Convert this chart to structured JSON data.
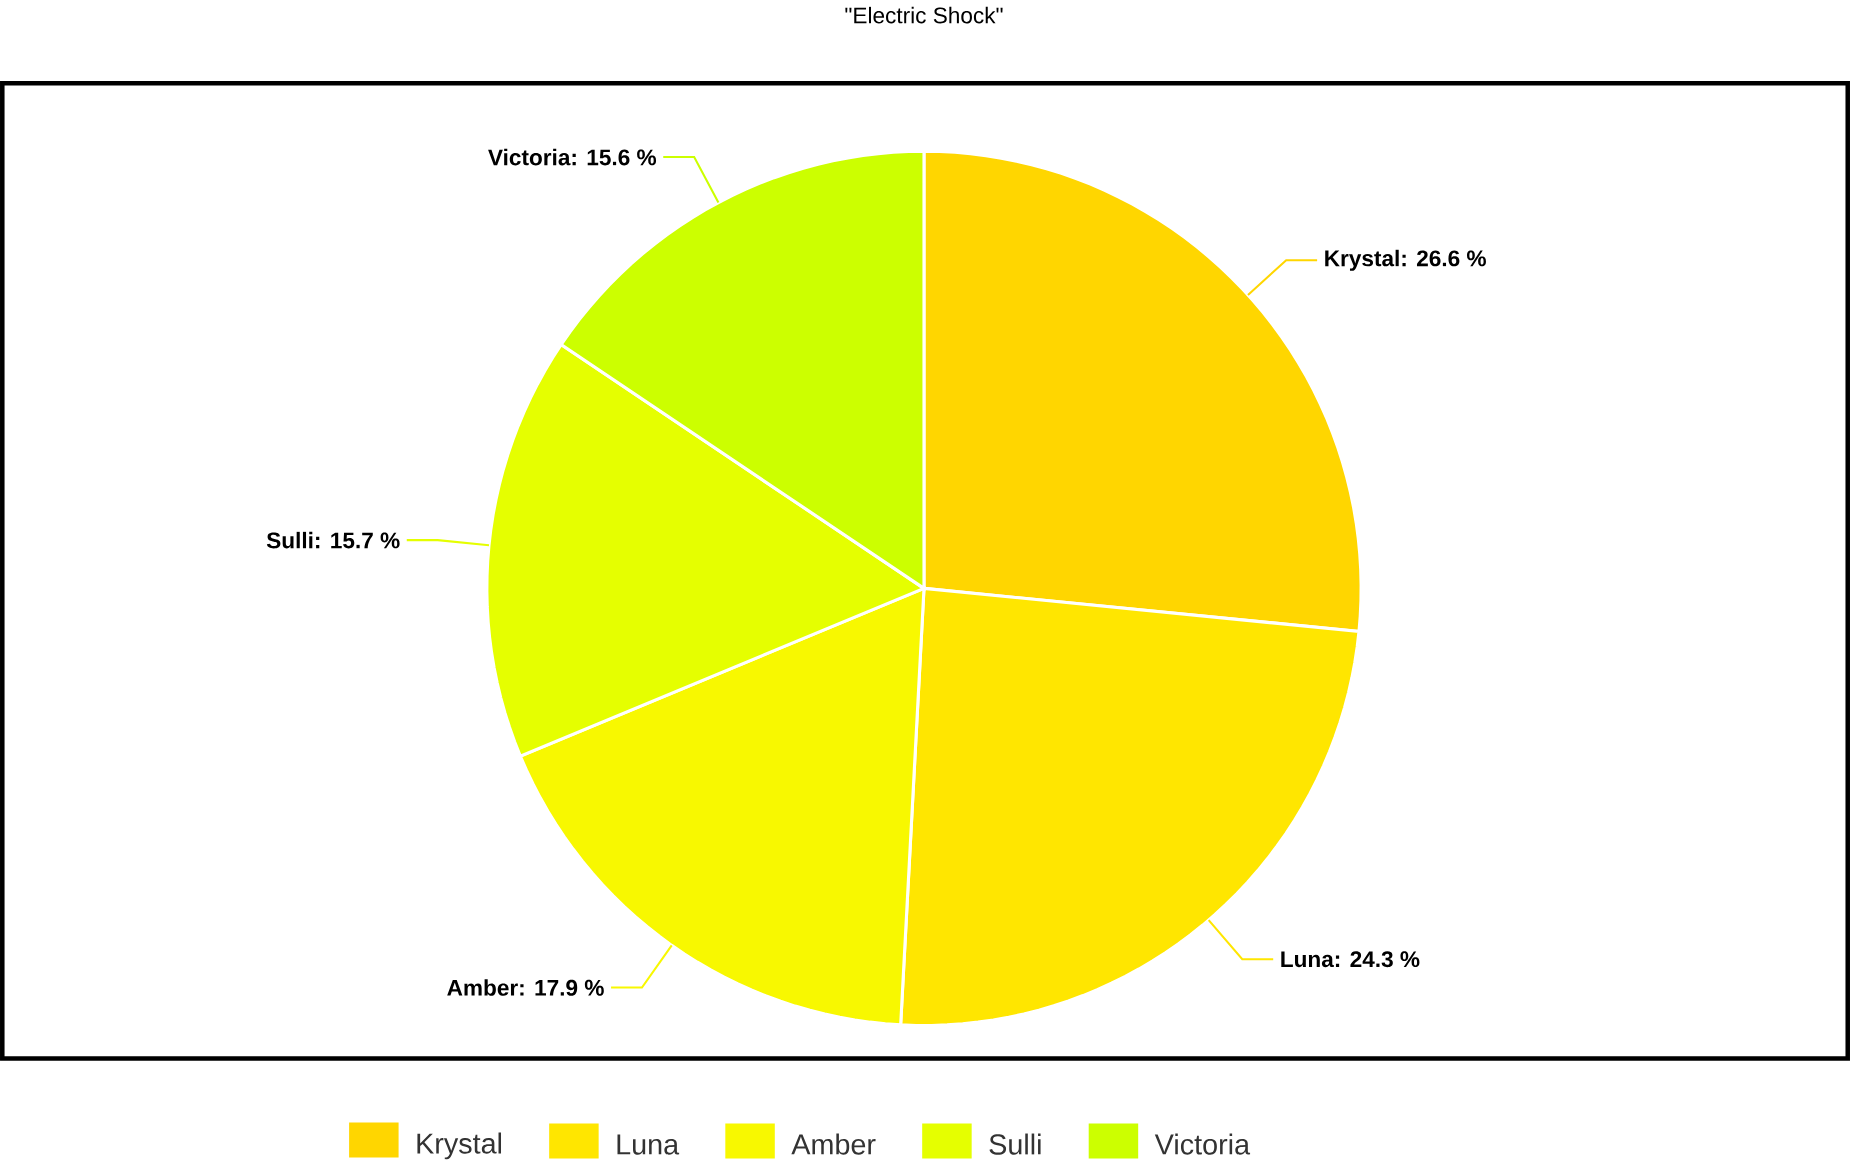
{
  "chart_data": {
    "type": "pie",
    "title": "\"Electric Shock\"",
    "categories": [
      "Krystal",
      "Luna",
      "Amber",
      "Sulli",
      "Victoria"
    ],
    "values": [
      26.6,
      24.3,
      17.9,
      15.7,
      15.6
    ],
    "colors": [
      "#ffd600",
      "#ffe600",
      "#f8f800",
      "#e5ff00",
      "#ccff00"
    ],
    "value_labels": [
      "Krystal: 26.6 %",
      "Luna: 24.3 %",
      "Amber: 17.9 %",
      "Sulli: 15.7 %",
      "Victoria: 15.6 %"
    ],
    "legend": "bottom"
  }
}
